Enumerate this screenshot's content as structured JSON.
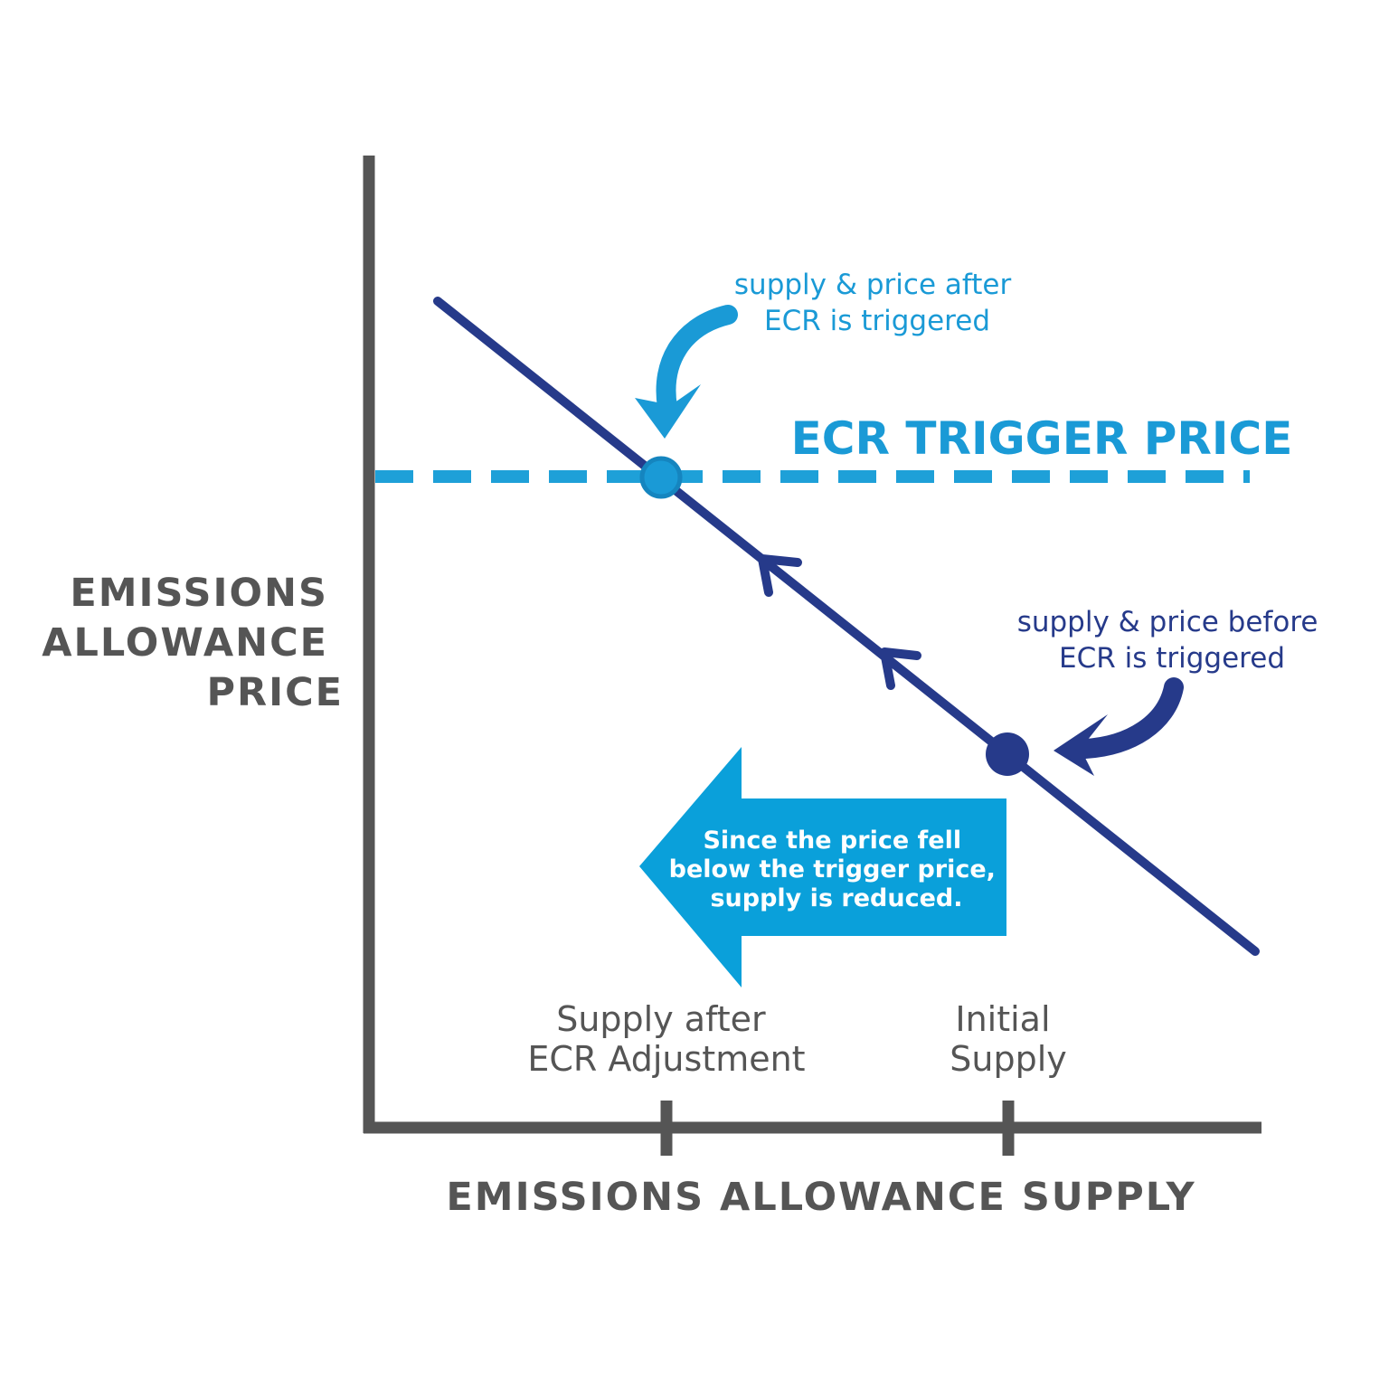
{
  "y_axis_label": [
    "EMISSIONS",
    "ALLOWANCE",
    "PRICE"
  ],
  "x_axis_label": "EMISSIONS ALLOWANCE SUPPLY",
  "trigger_label": "ECR TRIGGER PRICE",
  "note_after": [
    "supply & price after",
    "ECR is triggered"
  ],
  "note_before": [
    "supply & price before",
    "ECR is triggered"
  ],
  "arrow_text": [
    "Since the price fell",
    "below the trigger price,",
    "supply is reduced."
  ],
  "ticks": [
    [
      "Supply after",
      "ECR Adjustment"
    ],
    [
      "Initial",
      "Supply"
    ]
  ]
}
